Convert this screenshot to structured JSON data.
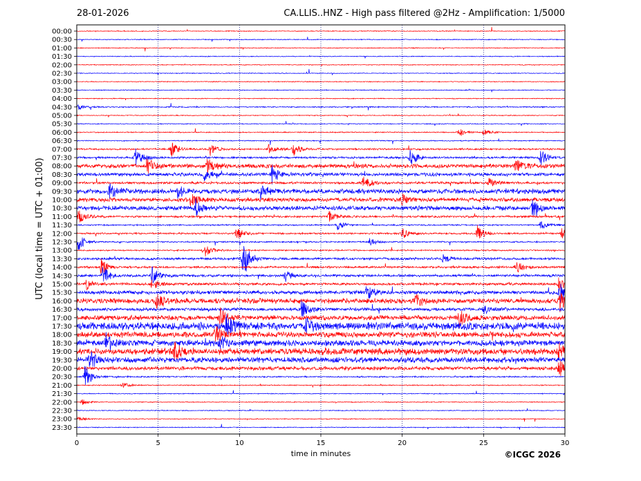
{
  "header": {
    "date": "28-01-2026",
    "title": "CA.LLIS..HNZ - High pass filtered @2Hz - Amplification: 1/5000"
  },
  "footer": {
    "copyright": "©ICGC 2026"
  },
  "colors": {
    "even_rows": "#ff0000",
    "odd_rows": "#0000ff",
    "grid": "#000080"
  },
  "chart_data": {
    "type": "line",
    "title": "CA.LLIS..HNZ - High pass filtered @2Hz - Amplification: 1/5000",
    "xlabel": "time in minutes",
    "ylabel": "UTC (local time = UTC + 01:00)",
    "xlim": [
      0,
      30
    ],
    "x_ticks": [
      0,
      5,
      10,
      15,
      20,
      25,
      30
    ],
    "x_grid": "dotted vertical lines every 5 minutes",
    "rows": [
      "00:00",
      "00:30",
      "01:00",
      "01:30",
      "02:00",
      "02:30",
      "03:00",
      "03:30",
      "04:00",
      "04:30",
      "05:00",
      "05:30",
      "06:00",
      "06:30",
      "07:00",
      "07:30",
      "08:00",
      "08:30",
      "09:00",
      "09:30",
      "10:00",
      "10:30",
      "11:00",
      "11:30",
      "12:00",
      "12:30",
      "13:00",
      "13:30",
      "14:00",
      "14:30",
      "15:00",
      "15:30",
      "16:00",
      "16:30",
      "17:00",
      "17:30",
      "18:00",
      "18:30",
      "19:00",
      "19:30",
      "20:00",
      "20:30",
      "21:00",
      "21:30",
      "22:00",
      "22:30",
      "23:00",
      "23:30"
    ],
    "row_colors": "alternating red (00:00) and blue (00:30)",
    "activity": [
      {
        "row": "00:00",
        "level": 0.05,
        "events": []
      },
      {
        "row": "00:30",
        "level": 0.05,
        "events": []
      },
      {
        "row": "01:00",
        "level": 0.05,
        "events": []
      },
      {
        "row": "01:30",
        "level": 0.05,
        "events": []
      },
      {
        "row": "02:00",
        "level": 0.05,
        "events": []
      },
      {
        "row": "02:30",
        "level": 0.05,
        "events": []
      },
      {
        "row": "03:00",
        "level": 0.05,
        "events": []
      },
      {
        "row": "03:30",
        "level": 0.05,
        "events": []
      },
      {
        "row": "04:00",
        "level": 0.05,
        "events": []
      },
      {
        "row": "04:30",
        "level": 0.07,
        "events": [
          {
            "t": 0.1,
            "amp": 0.4
          }
        ]
      },
      {
        "row": "05:00",
        "level": 0.05,
        "events": []
      },
      {
        "row": "05:30",
        "level": 0.05,
        "events": []
      },
      {
        "row": "06:00",
        "level": 0.06,
        "events": [
          {
            "t": 23.5,
            "amp": 0.6
          },
          {
            "t": 25.0,
            "amp": 0.5
          }
        ]
      },
      {
        "row": "06:30",
        "level": 0.06,
        "events": []
      },
      {
        "row": "07:00",
        "level": 0.1,
        "events": [
          {
            "t": 5.8,
            "amp": 1.2
          },
          {
            "t": 8.2,
            "amp": 0.8
          },
          {
            "t": 11.8,
            "amp": 0.7
          },
          {
            "t": 13.3,
            "amp": 0.9
          }
        ]
      },
      {
        "row": "07:30",
        "level": 0.12,
        "events": [
          {
            "t": 3.6,
            "amp": 1.4
          },
          {
            "t": 20.5,
            "amp": 1.3
          },
          {
            "t": 28.5,
            "amp": 1.2
          }
        ]
      },
      {
        "row": "08:00",
        "level": 0.25,
        "events": [
          {
            "t": 4.3,
            "amp": 1.3
          },
          {
            "t": 8.0,
            "amp": 0.9
          },
          {
            "t": 27.0,
            "amp": 1.0
          }
        ]
      },
      {
        "row": "08:30",
        "level": 0.2,
        "events": [
          {
            "t": 7.8,
            "amp": 0.8
          },
          {
            "t": 12.0,
            "amp": 1.2
          }
        ]
      },
      {
        "row": "09:00",
        "level": 0.14,
        "events": [
          {
            "t": 17.6,
            "amp": 1.2
          },
          {
            "t": 25.3,
            "amp": 0.7
          }
        ]
      },
      {
        "row": "09:30",
        "level": 0.28,
        "events": [
          {
            "t": 2.0,
            "amp": 1.2
          },
          {
            "t": 6.2,
            "amp": 0.8
          },
          {
            "t": 11.3,
            "amp": 1.0
          }
        ]
      },
      {
        "row": "10:00",
        "level": 0.24,
        "events": [
          {
            "t": 7.0,
            "amp": 0.9
          },
          {
            "t": 20.0,
            "amp": 0.7
          }
        ]
      },
      {
        "row": "10:30",
        "level": 0.26,
        "events": [
          {
            "t": 7.3,
            "amp": 1.0
          },
          {
            "t": 28.0,
            "amp": 1.2
          }
        ]
      },
      {
        "row": "11:00",
        "level": 0.12,
        "events": [
          {
            "t": 0.1,
            "amp": 1.0
          },
          {
            "t": 15.5,
            "amp": 0.7
          }
        ]
      },
      {
        "row": "11:30",
        "level": 0.08,
        "events": [
          {
            "t": 16.0,
            "amp": 0.7
          },
          {
            "t": 28.5,
            "amp": 0.7
          }
        ]
      },
      {
        "row": "12:00",
        "level": 0.1,
        "events": [
          {
            "t": 9.8,
            "amp": 1.0
          },
          {
            "t": 20.0,
            "amp": 0.8
          },
          {
            "t": 24.6,
            "amp": 1.1
          },
          {
            "t": 29.8,
            "amp": 0.7
          }
        ]
      },
      {
        "row": "12:30",
        "level": 0.08,
        "events": [
          {
            "t": 0.1,
            "amp": 1.2
          },
          {
            "t": 18.0,
            "amp": 0.5
          }
        ]
      },
      {
        "row": "13:00",
        "level": 0.08,
        "events": [
          {
            "t": 7.8,
            "amp": 1.0
          }
        ]
      },
      {
        "row": "13:30",
        "level": 0.14,
        "events": [
          {
            "t": 10.2,
            "amp": 3.0
          },
          {
            "t": 22.5,
            "amp": 0.5
          }
        ]
      },
      {
        "row": "14:00",
        "level": 0.12,
        "events": [
          {
            "t": 1.5,
            "amp": 1.2
          },
          {
            "t": 27.0,
            "amp": 0.9
          }
        ]
      },
      {
        "row": "14:30",
        "level": 0.15,
        "events": [
          {
            "t": 1.6,
            "amp": 1.4
          },
          {
            "t": 4.6,
            "amp": 1.3
          },
          {
            "t": 12.8,
            "amp": 0.9
          }
        ]
      },
      {
        "row": "15:00",
        "level": 0.15,
        "events": [
          {
            "t": 0.6,
            "amp": 0.8
          },
          {
            "t": 4.6,
            "amp": 0.8
          },
          {
            "t": 29.6,
            "amp": 0.9
          }
        ]
      },
      {
        "row": "15:30",
        "level": 0.22,
        "events": [
          {
            "t": 17.8,
            "amp": 1.0
          },
          {
            "t": 29.7,
            "amp": 1.3
          }
        ]
      },
      {
        "row": "16:00",
        "level": 0.3,
        "events": [
          {
            "t": 4.9,
            "amp": 1.2
          },
          {
            "t": 20.8,
            "amp": 1.0
          },
          {
            "t": 29.7,
            "amp": 1.4
          }
        ]
      },
      {
        "row": "16:30",
        "level": 0.18,
        "events": [
          {
            "t": 13.8,
            "amp": 1.3
          },
          {
            "t": 25.0,
            "amp": 0.6
          }
        ]
      },
      {
        "row": "17:00",
        "level": 0.28,
        "events": [
          {
            "t": 8.8,
            "amp": 1.3
          },
          {
            "t": 23.5,
            "amp": 1.3
          }
        ]
      },
      {
        "row": "17:30",
        "level": 0.45,
        "events": [
          {
            "t": 9.2,
            "amp": 1.5
          },
          {
            "t": 14.0,
            "amp": 1.3
          }
        ]
      },
      {
        "row": "18:00",
        "level": 0.34,
        "events": [
          {
            "t": 8.5,
            "amp": 1.2
          }
        ]
      },
      {
        "row": "18:30",
        "level": 0.35,
        "events": [
          {
            "t": 1.8,
            "amp": 1.3
          },
          {
            "t": 8.8,
            "amp": 1.1
          }
        ]
      },
      {
        "row": "19:00",
        "level": 0.38,
        "events": [
          {
            "t": 6.0,
            "amp": 1.2
          },
          {
            "t": 29.6,
            "amp": 1.0
          }
        ]
      },
      {
        "row": "19:30",
        "level": 0.32,
        "events": [
          {
            "t": 0.8,
            "amp": 1.3
          }
        ]
      },
      {
        "row": "20:00",
        "level": 0.22,
        "events": [
          {
            "t": 29.6,
            "amp": 1.4
          }
        ]
      },
      {
        "row": "20:30",
        "level": 0.08,
        "events": [
          {
            "t": 0.5,
            "amp": 1.6
          }
        ]
      },
      {
        "row": "21:00",
        "level": 0.06,
        "events": [
          {
            "t": 2.8,
            "amp": 0.4
          }
        ]
      },
      {
        "row": "21:30",
        "level": 0.05,
        "events": []
      },
      {
        "row": "22:00",
        "level": 0.05,
        "events": [
          {
            "t": 0.3,
            "amp": 0.4
          }
        ]
      },
      {
        "row": "22:30",
        "level": 0.05,
        "events": []
      },
      {
        "row": "23:00",
        "level": 0.05,
        "events": [
          {
            "t": 0.1,
            "amp": 0.3
          }
        ]
      },
      {
        "row": "23:30",
        "level": 0.05,
        "events": []
      }
    ]
  }
}
